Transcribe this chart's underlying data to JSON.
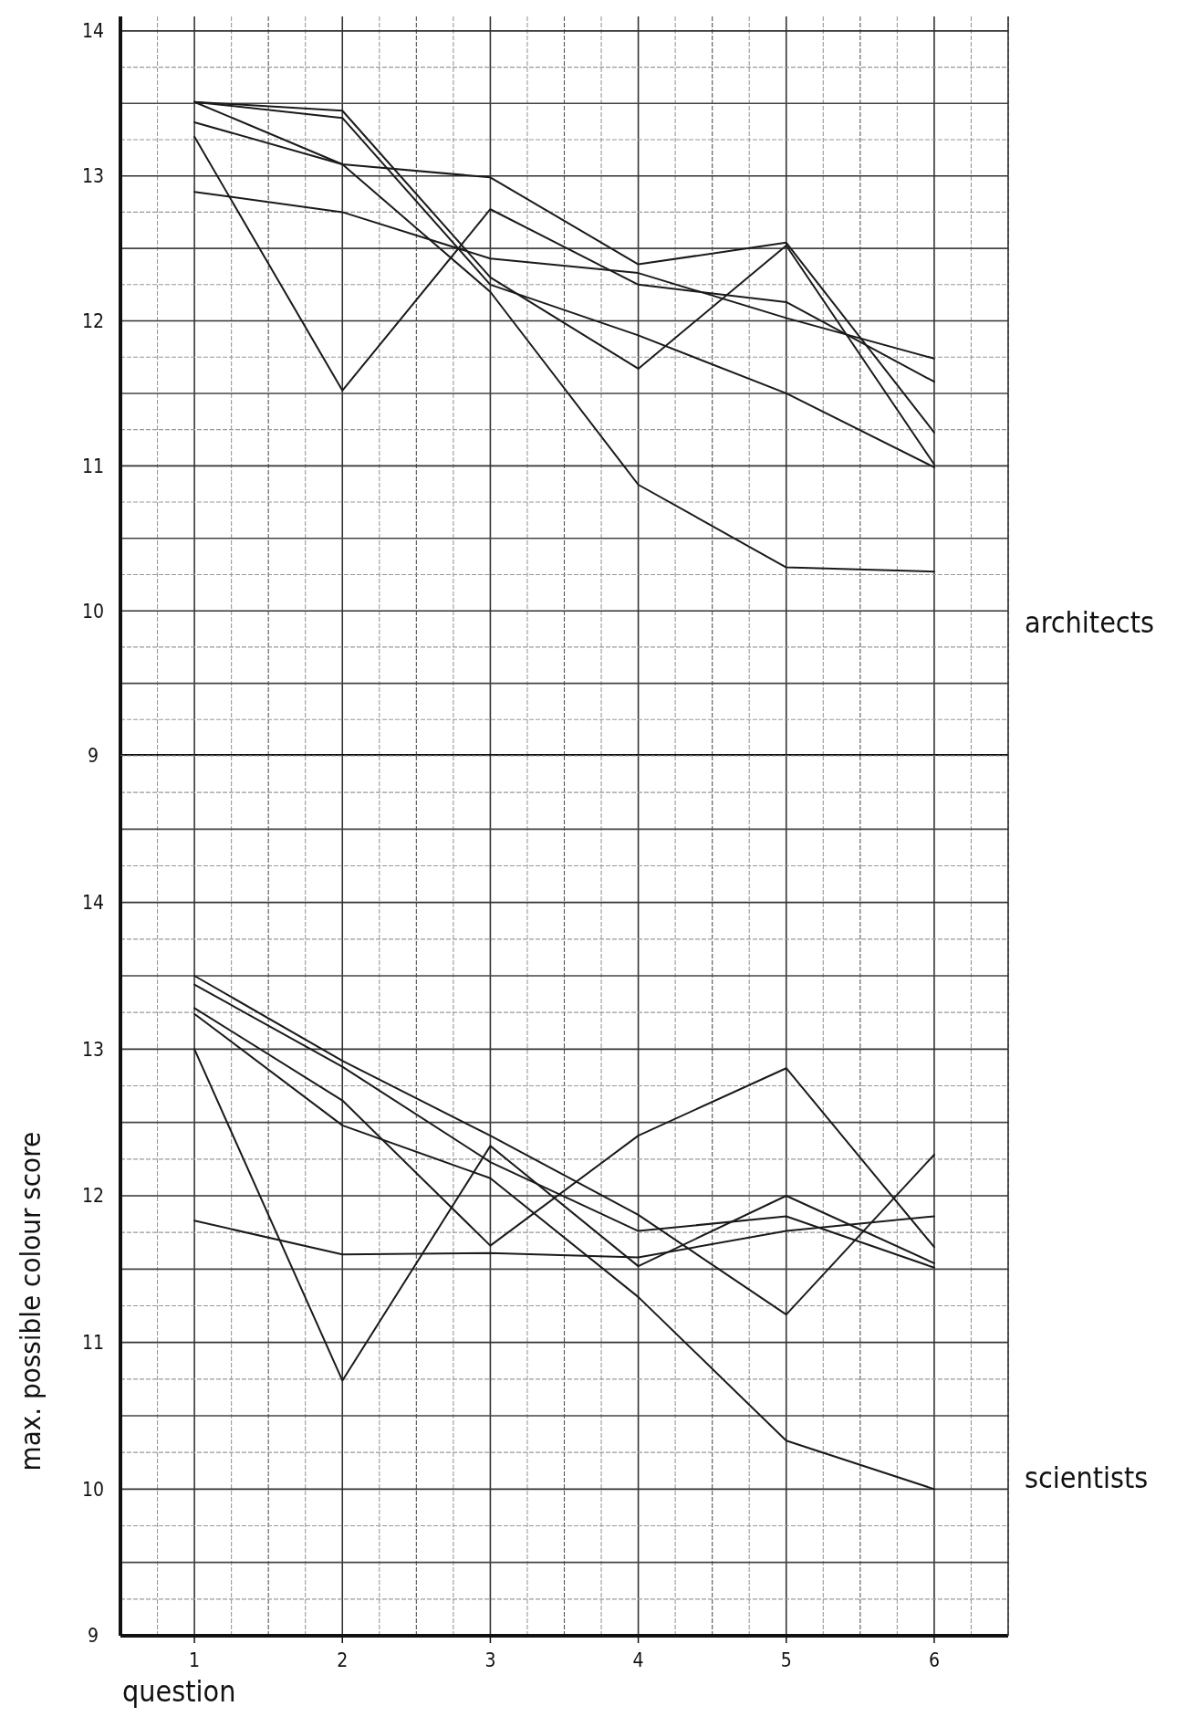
{
  "chart_data": [
    {
      "type": "line",
      "annotations": [
        "architects"
      ],
      "x": [
        1,
        2,
        3,
        4,
        5,
        6
      ],
      "series": [
        {
          "color": "#1a1a1a",
          "values": [
            13.51,
            13.45,
            12.3,
            11.67,
            12.52,
            11.01
          ]
        },
        {
          "color": "#1a1a1a",
          "values": [
            13.51,
            13.4,
            12.25,
            11.9,
            11.5,
            10.99
          ]
        },
        {
          "color": "#1a1a1a",
          "values": [
            13.51,
            13.08,
            12.99,
            12.39,
            12.54,
            11.23
          ]
        },
        {
          "color": "#1a1a1a",
          "values": [
            13.37,
            13.08,
            12.2,
            10.87,
            10.3,
            10.27
          ]
        },
        {
          "color": "#1a1a1a",
          "values": [
            13.27,
            11.52,
            12.77,
            12.25,
            12.13,
            11.58
          ]
        },
        {
          "color": "#1a1a1a",
          "values": [
            12.89,
            12.75,
            12.43,
            12.33,
            12.02,
            11.74
          ]
        }
      ],
      "xlim": [
        0.5,
        6.5
      ],
      "ylim": [
        9,
        14.1
      ],
      "xticks": [
        1,
        2,
        3,
        4,
        5,
        6
      ],
      "yticks": [
        9,
        10,
        11,
        12,
        13,
        14
      ],
      "grid": true,
      "tick_labels": "y"
    },
    {
      "type": "line",
      "annotations": [
        "scientists"
      ],
      "xlabel": "question",
      "ylabel": "max. possible colour score",
      "x": [
        1,
        2,
        3,
        4,
        5,
        6
      ],
      "series": [
        {
          "color": "#1a1a1a",
          "values": [
            13.5,
            12.92,
            12.41,
            11.87,
            11.19,
            12.28
          ]
        },
        {
          "color": "#1a1a1a",
          "values": [
            13.44,
            12.88,
            12.23,
            11.76,
            11.86,
            11.51
          ]
        },
        {
          "color": "#1a1a1a",
          "values": [
            13.28,
            12.65,
            11.66,
            12.41,
            12.87,
            11.65
          ]
        },
        {
          "color": "#1a1a1a",
          "values": [
            13.24,
            12.48,
            12.12,
            11.31,
            10.33,
            10.0
          ]
        },
        {
          "color": "#1a1a1a",
          "values": [
            13.0,
            10.74,
            12.34,
            11.52,
            12.0,
            11.54
          ]
        },
        {
          "color": "#1a1a1a",
          "values": [
            11.83,
            11.6,
            11.61,
            11.58,
            11.76,
            11.86
          ]
        }
      ],
      "xlim": [
        0.5,
        6.5
      ],
      "ylim": [
        9,
        15
      ],
      "xticks": [
        1,
        2,
        3,
        4,
        5,
        6
      ],
      "yticks": [
        9,
        10,
        11,
        12,
        13,
        14
      ],
      "grid": true
    }
  ]
}
